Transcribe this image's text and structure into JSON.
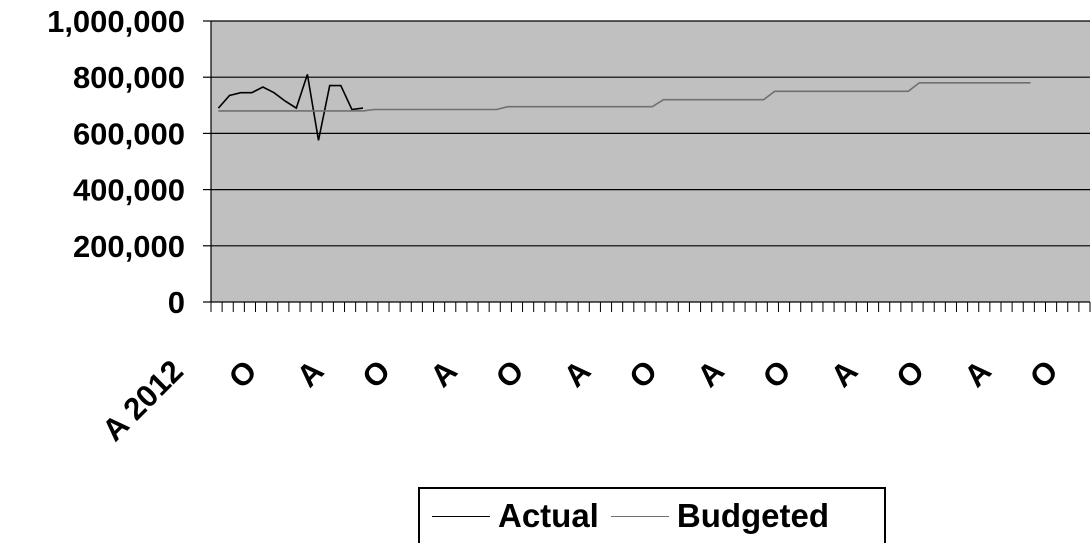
{
  "chart_data": {
    "type": "line",
    "ylim": [
      0,
      1000000
    ],
    "y_ticks": [
      "0",
      "200,000",
      "400,000",
      "600,000",
      "800,000",
      "1,000,000"
    ],
    "y_tick_values": [
      0,
      200000,
      400000,
      600000,
      800000,
      1000000
    ],
    "x_tick_labels": [
      "A 2012",
      "O",
      "A",
      "O",
      "A",
      "O",
      "A",
      "O",
      "A",
      "O",
      "A",
      "O",
      "A",
      "O"
    ],
    "x_tick_label_positions": [
      0,
      2,
      8,
      14,
      20,
      26,
      32,
      38,
      44,
      50,
      56,
      62,
      68,
      74
    ],
    "plot_background": "#c0c0c0",
    "grid": true,
    "legend_position": "bottom",
    "series": [
      {
        "name": "Actual",
        "color": "#000000",
        "x": [
          0,
          1,
          2,
          3,
          4,
          5,
          6,
          7,
          8,
          9,
          10,
          11,
          12,
          13
        ],
        "values": [
          690000,
          735000,
          745000,
          745000,
          765000,
          745000,
          715000,
          690000,
          810000,
          575000,
          770000,
          770000,
          685000,
          690000
        ]
      },
      {
        "name": "Budgeted",
        "color": "#707070",
        "x": [
          0,
          13,
          14,
          25,
          26,
          39,
          40,
          49,
          50,
          59,
          60,
          62,
          63,
          73
        ],
        "values": [
          680000,
          680000,
          685000,
          685000,
          695000,
          695000,
          720000,
          720000,
          750000,
          750000,
          750000,
          750000,
          780000,
          780000
        ]
      }
    ]
  },
  "legend": {
    "items": [
      {
        "label": "Actual",
        "color": "#000000"
      },
      {
        "label": "Budgeted",
        "color": "#707070"
      }
    ]
  }
}
